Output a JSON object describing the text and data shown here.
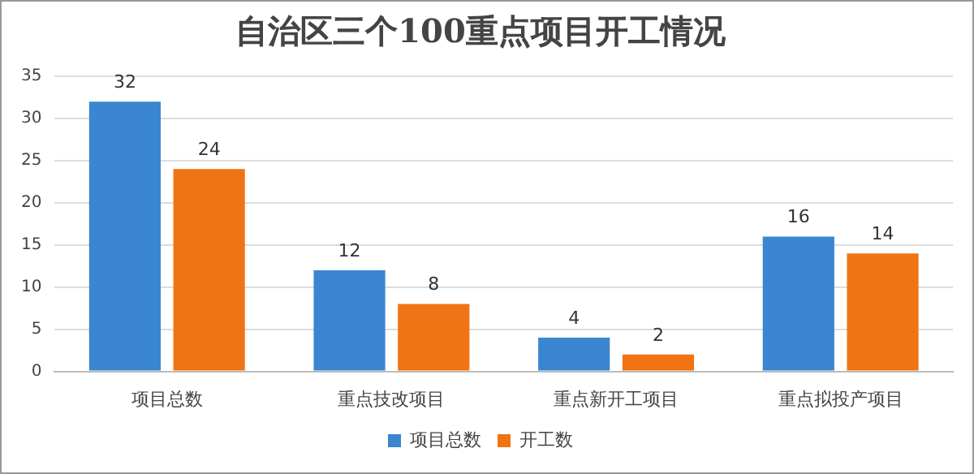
{
  "chart_data": {
    "type": "bar",
    "title": "自治区三个100重点项目开工情况",
    "categories": [
      "项目总数",
      "重点技改项目",
      "重点新开工项目",
      "重点拟投产项目"
    ],
    "series": [
      {
        "name": "项目总数",
        "color": "#3a86d0",
        "values": [
          32,
          12,
          4,
          16
        ]
      },
      {
        "name": "开工数",
        "color": "#f07414",
        "values": [
          24,
          8,
          2,
          14
        ]
      }
    ],
    "ylim": [
      0,
      35
    ],
    "yticks": [
      0,
      5,
      10,
      15,
      20,
      25,
      30,
      35
    ],
    "grid": "y",
    "legend": "bottom",
    "data_labels": true
  }
}
